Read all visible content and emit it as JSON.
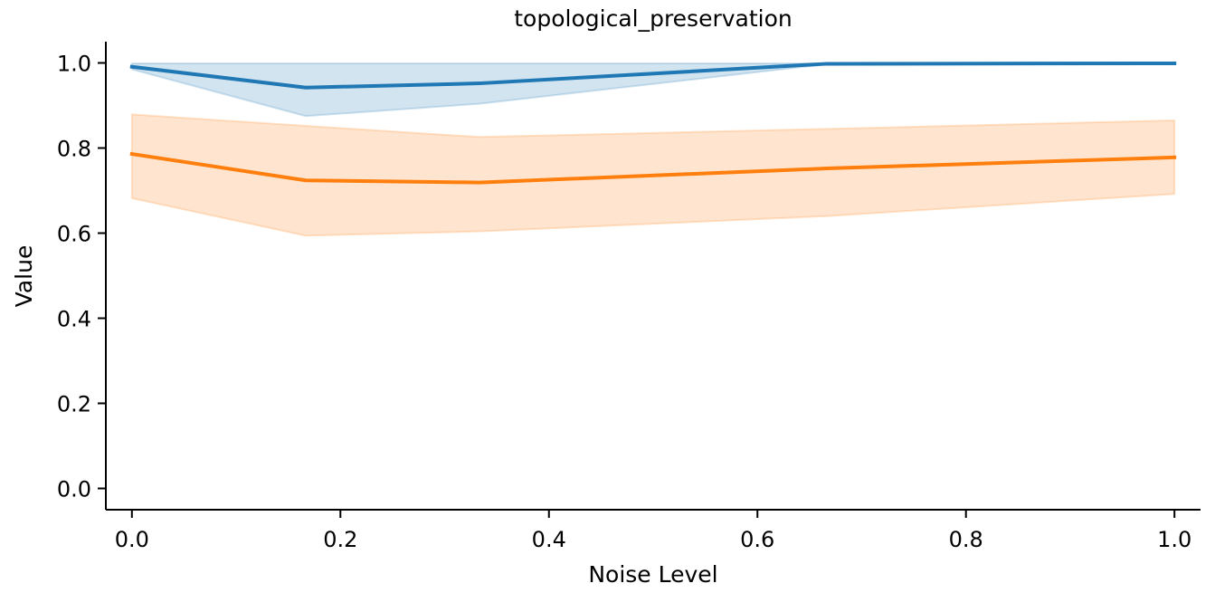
{
  "chart_data": {
    "type": "line",
    "title": "topological_preservation",
    "xlabel": "Noise Level",
    "ylabel": "Value",
    "xlim": [
      -0.025,
      1.025
    ],
    "ylim": [
      -0.05,
      1.05
    ],
    "xticks": [
      {
        "value": 0.0,
        "label": "0.0"
      },
      {
        "value": 0.2,
        "label": "0.2"
      },
      {
        "value": 0.4,
        "label": "0.4"
      },
      {
        "value": 0.6,
        "label": "0.6"
      },
      {
        "value": 0.8,
        "label": "0.8"
      },
      {
        "value": 1.0,
        "label": "1.0"
      }
    ],
    "yticks": [
      {
        "value": 0.0,
        "label": "0.0"
      },
      {
        "value": 0.2,
        "label": "0.2"
      },
      {
        "value": 0.4,
        "label": "0.4"
      },
      {
        "value": 0.6,
        "label": "0.6"
      },
      {
        "value": 0.8,
        "label": "0.8"
      },
      {
        "value": 1.0,
        "label": "1.0"
      }
    ],
    "grid": false,
    "legend": "none",
    "x": [
      0.0,
      0.1667,
      0.3333,
      0.6667,
      1.0
    ],
    "series": [
      {
        "color": "#1f77b4",
        "values": [
          0.991,
          0.942,
          0.952,
          0.998,
          0.999
        ],
        "lower": [
          0.985,
          0.875,
          0.904,
          0.997,
          0.998
        ],
        "upper": [
          0.999,
          0.999,
          0.999,
          0.999,
          0.999
        ]
      },
      {
        "color": "#ff7f0e",
        "values": [
          0.786,
          0.724,
          0.719,
          0.752,
          0.778
        ],
        "lower": [
          0.682,
          0.594,
          0.604,
          0.64,
          0.692
        ],
        "upper": [
          0.879,
          0.852,
          0.826,
          0.845,
          0.865
        ]
      }
    ]
  }
}
